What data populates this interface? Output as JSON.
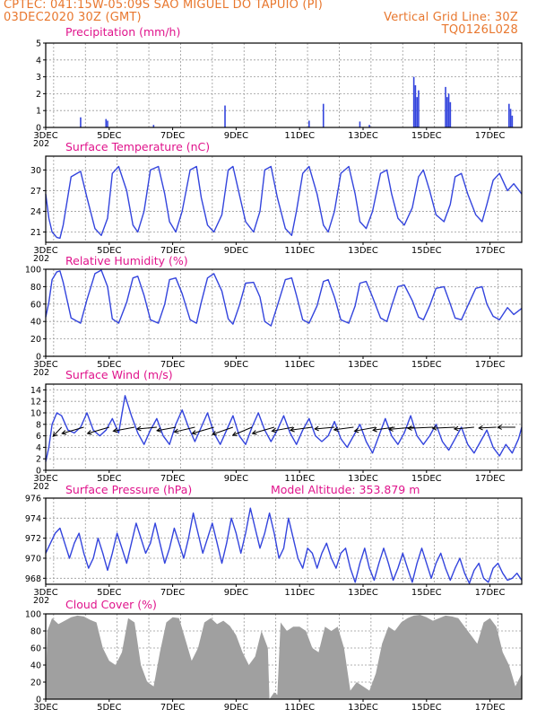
{
  "header": {
    "line1_left": "CPTEC:   041:15W-05:09S   SAO MIGUEL DO TAPUIO (PI)",
    "line2_left": "03DEC2020 30Z (GMT)",
    "line2_right": "Vertical Grid Line: 30Z",
    "line3_right": "TQ0126L028"
  },
  "x_axis": {
    "labels": [
      "3DEC",
      "5DEC",
      "7DEC",
      "9DEC",
      "11DEC",
      "13DEC",
      "15DEC",
      "17DEC"
    ],
    "year_stub": "202"
  },
  "colors": {
    "title": "#e0148c",
    "header": "#e8772e",
    "line": "#3344dd",
    "cloud": "#a0a0a0",
    "grid": "#999999"
  },
  "chart_data": [
    {
      "type": "bar",
      "title": "Precipitation (mm/h)",
      "ylim": [
        0,
        5
      ],
      "yticks": [
        "0",
        "1",
        "2",
        "3",
        "4",
        "5"
      ],
      "x_range_days": [
        3,
        18
      ],
      "bars": [
        [
          4.1,
          0.6
        ],
        [
          4.9,
          0.5
        ],
        [
          4.95,
          0.4
        ],
        [
          6.4,
          0.15
        ],
        [
          8.65,
          1.3
        ],
        [
          11.3,
          0.4
        ],
        [
          11.75,
          1.4
        ],
        [
          12.9,
          0.35
        ],
        [
          13.2,
          0.15
        ],
        [
          14.6,
          3.0
        ],
        [
          14.65,
          2.5
        ],
        [
          14.7,
          1.8
        ],
        [
          14.75,
          2.2
        ],
        [
          15.6,
          2.4
        ],
        [
          15.65,
          1.8
        ],
        [
          15.7,
          2.0
        ],
        [
          15.75,
          1.5
        ],
        [
          17.6,
          1.4
        ],
        [
          17.65,
          1.1
        ],
        [
          17.7,
          0.7
        ]
      ]
    },
    {
      "type": "line",
      "title": "Surface Temperature (nC)",
      "ylim": [
        19.5,
        32
      ],
      "yticks": [
        "21",
        "24",
        "27",
        "30"
      ],
      "x": [
        3.0,
        3.1,
        3.2,
        3.35,
        3.45,
        3.55,
        3.8,
        4.1,
        4.3,
        4.55,
        4.75,
        4.95,
        5.1,
        5.3,
        5.55,
        5.75,
        5.9,
        6.1,
        6.3,
        6.55,
        6.75,
        6.9,
        7.1,
        7.3,
        7.55,
        7.75,
        7.9,
        8.1,
        8.3,
        8.55,
        8.75,
        8.9,
        9.1,
        9.3,
        9.55,
        9.75,
        9.9,
        10.1,
        10.3,
        10.55,
        10.75,
        10.9,
        11.1,
        11.3,
        11.55,
        11.75,
        11.9,
        12.1,
        12.3,
        12.55,
        12.75,
        12.9,
        13.1,
        13.3,
        13.55,
        13.75,
        13.9,
        14.1,
        14.3,
        14.55,
        14.75,
        14.9,
        15.1,
        15.3,
        15.55,
        15.75,
        15.9,
        16.1,
        16.3,
        16.55,
        16.75,
        16.9,
        17.1,
        17.3,
        17.55,
        17.75,
        18.0
      ],
      "values": [
        26.5,
        23.0,
        21.0,
        20.2,
        20.1,
        22.0,
        29.0,
        29.8,
        26.0,
        21.5,
        20.5,
        23.0,
        29.5,
        30.5,
        27.0,
        22.0,
        21.0,
        24.0,
        30.0,
        30.5,
        26.5,
        22.5,
        21.0,
        24.0,
        30.0,
        30.5,
        26.0,
        22.0,
        21.0,
        23.5,
        30.0,
        30.5,
        26.5,
        22.5,
        21.0,
        24.0,
        30.0,
        30.5,
        26.0,
        21.5,
        20.5,
        24.0,
        29.5,
        30.5,
        26.5,
        22.0,
        21.0,
        24.0,
        29.5,
        30.5,
        26.5,
        22.5,
        21.5,
        24.0,
        29.5,
        30.0,
        26.5,
        23.0,
        22.0,
        24.5,
        29.0,
        30.0,
        27.0,
        23.5,
        22.5,
        25.0,
        29.0,
        29.5,
        26.5,
        23.5,
        22.5,
        25.0,
        28.5,
        29.5,
        27.0,
        28.0,
        26.5
      ]
    },
    {
      "type": "line",
      "title": "Relative Humidity (%)",
      "ylim": [
        0,
        100
      ],
      "yticks": [
        "0",
        "20",
        "40",
        "60",
        "80",
        "100"
      ],
      "x": [
        3.0,
        3.1,
        3.2,
        3.35,
        3.45,
        3.55,
        3.8,
        4.1,
        4.3,
        4.55,
        4.75,
        4.95,
        5.1,
        5.3,
        5.55,
        5.75,
        5.9,
        6.1,
        6.3,
        6.55,
        6.75,
        6.9,
        7.1,
        7.3,
        7.55,
        7.75,
        7.9,
        8.1,
        8.3,
        8.55,
        8.75,
        8.9,
        9.1,
        9.3,
        9.55,
        9.75,
        9.9,
        10.1,
        10.3,
        10.55,
        10.75,
        10.9,
        11.1,
        11.3,
        11.55,
        11.75,
        11.9,
        12.1,
        12.3,
        12.55,
        12.75,
        12.9,
        13.1,
        13.3,
        13.55,
        13.75,
        13.9,
        14.1,
        14.3,
        14.55,
        14.75,
        14.9,
        15.1,
        15.3,
        15.55,
        15.75,
        15.9,
        16.1,
        16.3,
        16.55,
        16.75,
        16.9,
        17.1,
        17.3,
        17.55,
        17.75,
        18.0
      ],
      "values": [
        45,
        62,
        88,
        97,
        98,
        85,
        44,
        38,
        65,
        95,
        99,
        80,
        43,
        38,
        62,
        90,
        92,
        70,
        42,
        38,
        60,
        88,
        90,
        72,
        42,
        38,
        62,
        90,
        95,
        75,
        43,
        37,
        58,
        84,
        85,
        68,
        40,
        35,
        58,
        88,
        90,
        70,
        42,
        38,
        58,
        86,
        88,
        68,
        42,
        38,
        58,
        84,
        86,
        68,
        44,
        40,
        58,
        80,
        82,
        64,
        45,
        42,
        58,
        78,
        80,
        60,
        44,
        42,
        58,
        78,
        80,
        60,
        46,
        42,
        56,
        48,
        55
      ]
    },
    {
      "type": "line",
      "title": "Surface Wind (m/s)",
      "ylim": [
        0,
        15
      ],
      "yticks": [
        "0",
        "2",
        "4",
        "6",
        "8",
        "10",
        "12",
        "14"
      ],
      "x": [
        3.0,
        3.1,
        3.2,
        3.35,
        3.5,
        3.7,
        3.9,
        4.1,
        4.3,
        4.5,
        4.7,
        4.9,
        5.1,
        5.3,
        5.5,
        5.7,
        5.9,
        6.1,
        6.3,
        6.5,
        6.7,
        6.9,
        7.1,
        7.3,
        7.5,
        7.7,
        7.9,
        8.1,
        8.3,
        8.5,
        8.7,
        8.9,
        9.1,
        9.3,
        9.5,
        9.7,
        9.9,
        10.1,
        10.3,
        10.5,
        10.7,
        10.9,
        11.1,
        11.3,
        11.5,
        11.7,
        11.9,
        12.1,
        12.3,
        12.5,
        12.7,
        12.9,
        13.1,
        13.3,
        13.5,
        13.7,
        13.9,
        14.1,
        14.3,
        14.5,
        14.7,
        14.9,
        15.1,
        15.3,
        15.5,
        15.7,
        15.9,
        16.1,
        16.3,
        16.5,
        16.7,
        16.9,
        17.1,
        17.3,
        17.5,
        17.7,
        17.9,
        18.0
      ],
      "values": [
        1.5,
        4.0,
        8.0,
        10.0,
        9.5,
        7.0,
        6.5,
        7.5,
        10.0,
        7.0,
        6.0,
        7.0,
        9.0,
        6.5,
        13.0,
        9.5,
        6.5,
        4.5,
        7.0,
        9.0,
        6.0,
        4.5,
        8.0,
        10.5,
        7.5,
        5.0,
        7.5,
        10.0,
        6.5,
        4.5,
        7.0,
        9.5,
        6.0,
        4.5,
        7.5,
        10.0,
        7.0,
        5.0,
        7.0,
        9.5,
        6.5,
        4.5,
        7.0,
        9.0,
        6.0,
        5.0,
        6.0,
        8.5,
        5.5,
        4.0,
        6.0,
        8.0,
        5.0,
        3.0,
        6.0,
        9.0,
        6.0,
        4.5,
        6.5,
        9.5,
        6.0,
        4.5,
        6.0,
        8.0,
        5.0,
        3.5,
        5.5,
        7.5,
        4.5,
        3.0,
        5.0,
        7.0,
        4.0,
        2.5,
        4.5,
        3.0,
        5.5,
        7.5
      ]
    },
    {
      "type": "line",
      "title": "Surface Pressure (hPa)",
      "annotation": "Model Altitude: 353.879  m",
      "ylim": [
        967.4,
        976
      ],
      "yticks": [
        "968",
        "970",
        "972",
        "974",
        "976"
      ],
      "x": [
        3.0,
        3.15,
        3.3,
        3.45,
        3.6,
        3.75,
        3.9,
        4.05,
        4.2,
        4.35,
        4.5,
        4.65,
        4.8,
        4.95,
        5.1,
        5.25,
        5.4,
        5.55,
        5.7,
        5.85,
        6.0,
        6.15,
        6.3,
        6.45,
        6.6,
        6.75,
        6.9,
        7.05,
        7.2,
        7.35,
        7.5,
        7.65,
        7.8,
        7.95,
        8.1,
        8.25,
        8.4,
        8.55,
        8.7,
        8.85,
        9.0,
        9.15,
        9.3,
        9.45,
        9.6,
        9.75,
        9.9,
        10.05,
        10.2,
        10.35,
        10.5,
        10.65,
        10.8,
        10.95,
        11.1,
        11.25,
        11.4,
        11.55,
        11.7,
        11.85,
        12.0,
        12.15,
        12.3,
        12.45,
        12.6,
        12.75,
        12.9,
        13.05,
        13.2,
        13.35,
        13.5,
        13.65,
        13.8,
        13.95,
        14.1,
        14.25,
        14.4,
        14.55,
        14.7,
        14.85,
        15.0,
        15.15,
        15.3,
        15.45,
        15.6,
        15.75,
        15.9,
        16.05,
        16.2,
        16.35,
        16.5,
        16.65,
        16.8,
        16.95,
        17.1,
        17.25,
        17.4,
        17.55,
        17.7,
        17.85,
        18.0
      ],
      "values": [
        970.5,
        971.5,
        972.5,
        973.0,
        971.5,
        970.0,
        971.5,
        972.5,
        970.5,
        969.0,
        970.0,
        972.0,
        970.5,
        968.8,
        970.5,
        972.5,
        971.0,
        969.5,
        971.5,
        973.5,
        972.0,
        970.5,
        971.5,
        973.5,
        971.5,
        969.5,
        971.0,
        973.0,
        971.5,
        970.0,
        972.0,
        974.5,
        972.5,
        970.5,
        972.0,
        973.5,
        971.5,
        969.5,
        971.5,
        974.0,
        972.5,
        970.5,
        972.5,
        975.0,
        973.0,
        971.0,
        972.5,
        974.5,
        972.5,
        970.0,
        971.0,
        974.0,
        972.0,
        970.0,
        969.0,
        971.0,
        970.5,
        969.0,
        970.5,
        971.5,
        970.0,
        969.0,
        970.5,
        971.0,
        969.0,
        967.6,
        969.5,
        971.0,
        969.0,
        967.8,
        969.5,
        971.0,
        969.5,
        967.8,
        969.0,
        970.5,
        969.0,
        967.6,
        969.5,
        971.0,
        969.5,
        968.0,
        969.5,
        970.5,
        969.0,
        967.8,
        969.0,
        970.0,
        968.5,
        967.5,
        968.8,
        969.5,
        968.0,
        967.6,
        969.0,
        969.5,
        968.5,
        967.8,
        968.0,
        968.5,
        967.8
      ]
    },
    {
      "type": "area",
      "title": "Cloud Cover (%)",
      "ylim": [
        0,
        100
      ],
      "yticks": [
        "0",
        "20",
        "40",
        "60",
        "80",
        "100"
      ],
      "x": [
        3.0,
        3.05,
        3.2,
        3.4,
        3.6,
        3.8,
        4.0,
        4.2,
        4.4,
        4.6,
        4.8,
        5.0,
        5.2,
        5.4,
        5.6,
        5.8,
        6.0,
        6.2,
        6.4,
        6.6,
        6.8,
        7.0,
        7.2,
        7.4,
        7.6,
        7.8,
        8.0,
        8.2,
        8.4,
        8.6,
        8.8,
        9.0,
        9.2,
        9.4,
        9.6,
        9.8,
        10.0,
        10.05,
        10.2,
        10.3,
        10.4,
        10.6,
        10.8,
        11.0,
        11.2,
        11.4,
        11.6,
        11.8,
        12.0,
        12.2,
        12.4,
        12.6,
        12.8,
        13.0,
        13.2,
        13.4,
        13.6,
        13.8,
        14.0,
        14.2,
        14.4,
        14.6,
        14.8,
        15.0,
        15.2,
        15.4,
        15.6,
        15.8,
        16.0,
        16.2,
        16.4,
        16.6,
        16.8,
        17.0,
        17.2,
        17.4,
        17.6,
        17.8,
        18.0
      ],
      "values": [
        15,
        80,
        95,
        88,
        92,
        96,
        98,
        97,
        93,
        90,
        60,
        45,
        40,
        55,
        95,
        90,
        40,
        20,
        15,
        55,
        90,
        96,
        95,
        70,
        45,
        60,
        90,
        95,
        88,
        92,
        86,
        75,
        55,
        40,
        50,
        80,
        60,
        0,
        8,
        5,
        90,
        80,
        85,
        85,
        80,
        60,
        55,
        85,
        80,
        85,
        60,
        10,
        20,
        15,
        10,
        30,
        65,
        85,
        80,
        90,
        95,
        98,
        99,
        96,
        92,
        95,
        98,
        97,
        95,
        85,
        75,
        65,
        90,
        95,
        85,
        55,
        40,
        15,
        30
      ]
    },
    {
      "type": "vector",
      "title": "wind barbs (direction, relative length)",
      "x": [
        3.5,
        4.2,
        5.0,
        5.8,
        6.5,
        7.1,
        7.7,
        8.3,
        8.9,
        9.5,
        10.2,
        10.8,
        11.4,
        12.1,
        12.7,
        13.4,
        14.0,
        14.6,
        15.2,
        15.9,
        16.5,
        17.2,
        17.8
      ],
      "angle": [
        115,
        150,
        150,
        160,
        170,
        160,
        155,
        150,
        145,
        140,
        150,
        160,
        165,
        170,
        165,
        160,
        165,
        170,
        175,
        175,
        170,
        175,
        180
      ],
      "mag": [
        0.8,
        1.0,
        1.0,
        0.9,
        0.8,
        0.8,
        0.9,
        1.0,
        1.0,
        1.0,
        1.0,
        0.9,
        0.9,
        0.8,
        0.8,
        0.9,
        0.9,
        1.0,
        1.0,
        0.9,
        0.8,
        0.7,
        0.7
      ]
    }
  ]
}
